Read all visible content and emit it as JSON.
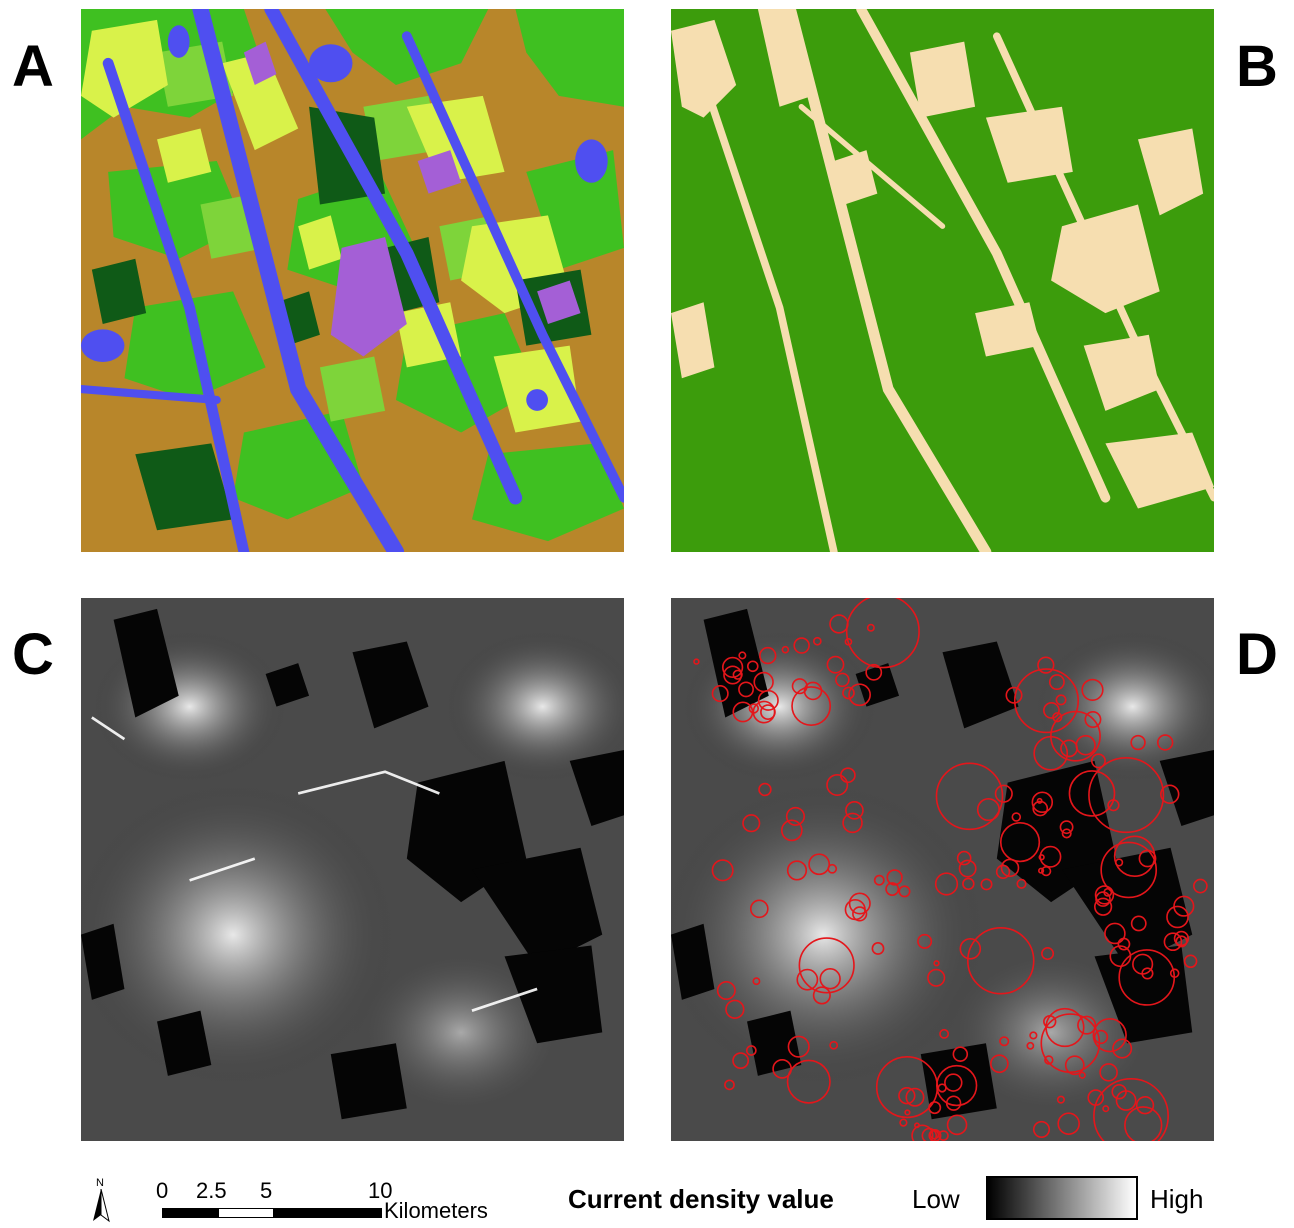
{
  "panels": [
    {
      "id": "A",
      "label": "A",
      "kind": "land-cover-classes"
    },
    {
      "id": "B",
      "label": "B",
      "kind": "habitat-binary"
    },
    {
      "id": "C",
      "label": "C",
      "kind": "current-density"
    },
    {
      "id": "D",
      "label": "D",
      "kind": "current-density-with-circles"
    }
  ],
  "colors": {
    "water": "#4f4ff0",
    "brown": "#b8862a",
    "green": "#3fc021",
    "lightgreen": "#7ed43a",
    "yellowgreen": "#d9f24a",
    "darkgreen": "#0f5a17",
    "purple": "#a45fd6",
    "habitat_green": "#3c9c0c",
    "habitat_tan": "#f6deb0",
    "circle_red": "#e4161b"
  },
  "north_arrow": {
    "letter": "N",
    "icon": "north-arrow-icon"
  },
  "scale_bar": {
    "ticks": [
      "0",
      "2.5",
      "5",
      "10"
    ],
    "unit": "Kilometers"
  },
  "legend": {
    "title": "Current density value",
    "low": "Low",
    "high": "High",
    "gradient": [
      "#000000",
      "#ffffff"
    ]
  }
}
